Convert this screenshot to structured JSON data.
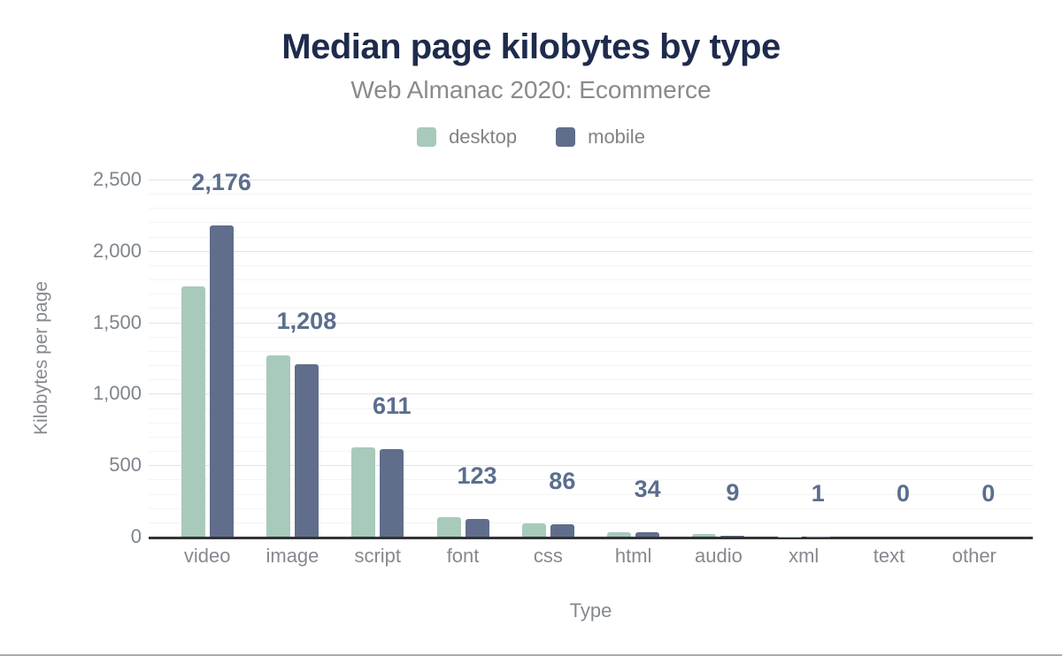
{
  "header": {
    "title": "Median page kilobytes by type",
    "subtitle": "Web Almanac 2020: Ecommerce"
  },
  "chart_data": {
    "type": "bar",
    "title": "Median page kilobytes by type",
    "subtitle": "Web Almanac 2020: Ecommerce",
    "xlabel": "Type",
    "ylabel": "Kilobytes per page",
    "categories": [
      "video",
      "image",
      "script",
      "font",
      "css",
      "html",
      "audio",
      "xml",
      "text",
      "other"
    ],
    "series": [
      {
        "name": "desktop",
        "color": "#a8caba",
        "values": [
          1750,
          1266,
          625,
          137,
          90,
          33,
          16,
          2,
          0,
          0
        ]
      },
      {
        "name": "mobile",
        "color": "#606e8b",
        "values": [
          2176,
          1208,
          611,
          123,
          86,
          34,
          9,
          1,
          0,
          0
        ]
      }
    ],
    "data_labels": [
      "2,176",
      "1,208",
      "611",
      "123",
      "86",
      "34",
      "9",
      "1",
      "0",
      "0"
    ],
    "data_labels_series": "mobile",
    "ylim": [
      0,
      2500
    ],
    "yticks": [
      "0",
      "500",
      "1,000",
      "1,500",
      "2,000",
      "2,500"
    ],
    "ytick_step": 500,
    "grid": {
      "major_every": 500,
      "minor_every": 100,
      "legend_position": "top"
    }
  },
  "colors": {
    "title": "#1e2b4c",
    "subtitle": "#8a8a8a",
    "legend_text": "#828282",
    "axis_ticks": "#7f858c",
    "x_labels": "#85898f",
    "axis_titles": "#85898f",
    "value_labels": "#5b6e8e",
    "axis_line": "#333333",
    "grid_major": "#e3e3e3",
    "grid_minor": "#f4f4f4",
    "desktop": "#a8caba",
    "mobile": "#606e8b",
    "page_rule": "#ababab"
  }
}
